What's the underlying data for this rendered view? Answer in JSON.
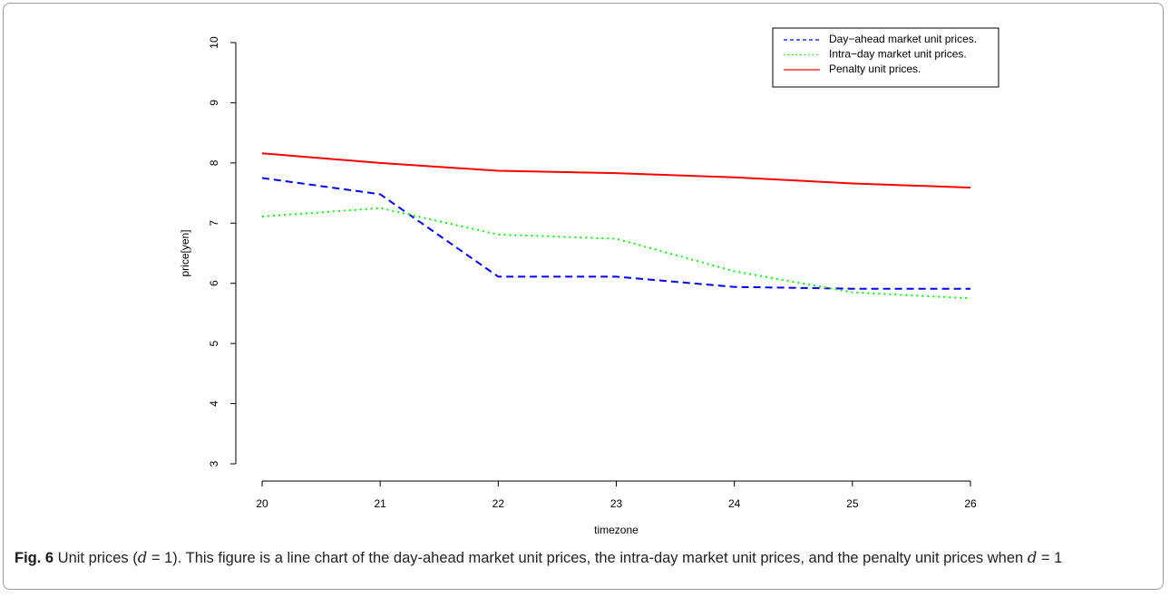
{
  "chart_data": {
    "type": "line",
    "x": [
      20,
      21,
      22,
      23,
      24,
      25,
      26
    ],
    "xlabel": "timezone",
    "ylabel": "price[yen]",
    "xlim": [
      20,
      26
    ],
    "ylim": [
      3,
      10
    ],
    "x_ticks": [
      "20",
      "21",
      "22",
      "23",
      "24",
      "25",
      "26"
    ],
    "y_ticks": [
      "3",
      "4",
      "5",
      "6",
      "7",
      "8",
      "9",
      "10"
    ],
    "grid": false,
    "legend_position": "top-right",
    "series": [
      {
        "name": "Day−ahead market unit prices.",
        "values": [
          7.75,
          7.48,
          6.11,
          6.11,
          5.94,
          5.91,
          5.91
        ],
        "color": "#0000ff",
        "dash": "dashed"
      },
      {
        "name": "Intra−day market unit prices.",
        "values": [
          7.11,
          7.25,
          6.81,
          6.74,
          6.2,
          5.85,
          5.75
        ],
        "color": "#00ff00",
        "dash": "dotted"
      },
      {
        "name": "Penalty unit prices.",
        "values": [
          8.16,
          8.0,
          7.87,
          7.83,
          7.76,
          7.66,
          7.59
        ],
        "color": "#ff0000",
        "dash": "solid"
      }
    ]
  },
  "caption": {
    "label": "Fig. 6",
    "text_before": " Unit prices (",
    "math_var": "d",
    "math_eq": " = 1",
    "text_after": "). This figure is a line chart of the day-ahead market unit prices, the intra-day market unit prices, and the penalty unit prices when ",
    "math_var_2": "d",
    "math_eq_2": " = 1"
  }
}
